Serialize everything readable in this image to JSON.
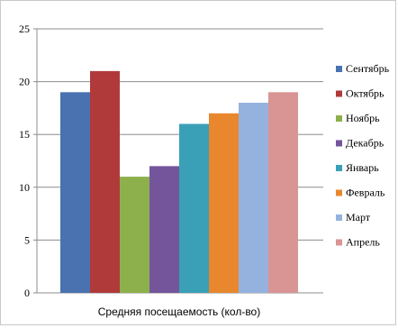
{
  "chart_data": {
    "type": "bar",
    "xlabel": "Средняя посещаемость  (кол-во)",
    "ylim": [
      0,
      25
    ],
    "yticks": [
      0,
      5,
      10,
      15,
      20,
      25
    ],
    "grid": true,
    "legend_position": "right",
    "series": [
      {
        "name": "Сентябрь",
        "values": [
          19
        ],
        "color": "#4a72b0"
      },
      {
        "name": "Октябрь",
        "values": [
          21
        ],
        "color": "#b03a3a"
      },
      {
        "name": "Ноябрь",
        "values": [
          11
        ],
        "color": "#8db04c"
      },
      {
        "name": "Декабрь",
        "values": [
          12
        ],
        "color": "#74559c"
      },
      {
        "name": "Январь",
        "values": [
          16
        ],
        "color": "#3aa0b8"
      },
      {
        "name": "Февраль",
        "values": [
          17
        ],
        "color": "#e8872e"
      },
      {
        "name": "Март",
        "values": [
          18
        ],
        "color": "#95b2de"
      },
      {
        "name": "Апрель",
        "values": [
          19
        ],
        "color": "#d99494"
      }
    ]
  }
}
